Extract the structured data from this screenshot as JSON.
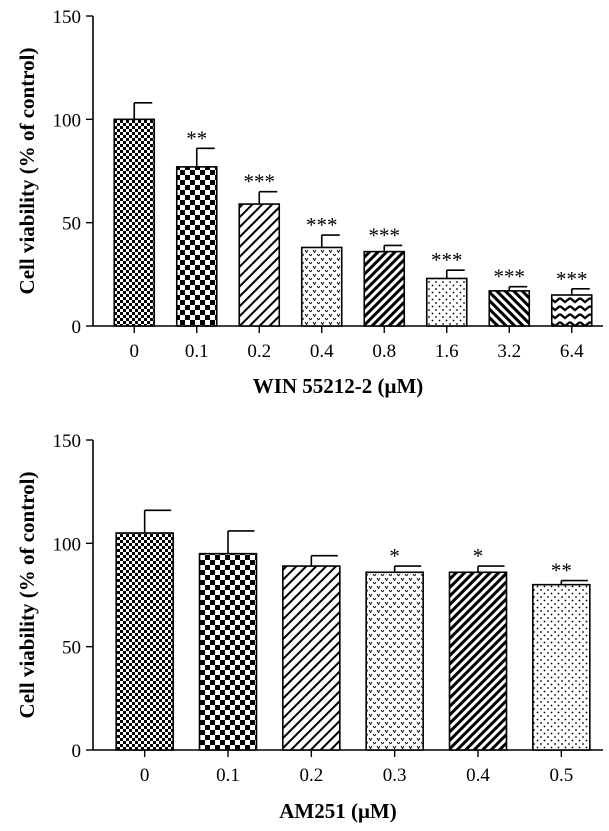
{
  "chart_data": [
    {
      "type": "bar",
      "categories": [
        "0",
        "0.1",
        "0.2",
        "0.4",
        "0.8",
        "1.6",
        "3.2",
        "6.4"
      ],
      "values": [
        100,
        77,
        59,
        38,
        36,
        23,
        17,
        15
      ],
      "errors": [
        8,
        9,
        6,
        6,
        3,
        4,
        2,
        3
      ],
      "significance": [
        "",
        "**",
        "***",
        "***",
        "***",
        "***",
        "***",
        "***"
      ],
      "patterns": [
        "fine-check",
        "checker",
        "diag-right",
        "dots-v",
        "diag-right-dense",
        "dots",
        "diag-left",
        "zigzag"
      ],
      "xlabel": "WIN 55212-2 (μM)",
      "ylabel": "Cell viability (% of control)",
      "ylim": [
        0,
        150
      ],
      "yticks": [
        0,
        50,
        100,
        150
      ]
    },
    {
      "type": "bar",
      "categories": [
        "0",
        "0.1",
        "0.2",
        "0.3",
        "0.4",
        "0.5"
      ],
      "values": [
        105,
        95,
        89,
        86,
        86,
        80
      ],
      "errors": [
        11,
        11,
        5,
        3,
        3,
        2
      ],
      "significance": [
        "",
        "",
        "",
        "*",
        "*",
        "**"
      ],
      "patterns": [
        "fine-check",
        "checker",
        "diag-right",
        "dots-v",
        "diag-right-dense",
        "dots"
      ],
      "xlabel": "AM251 (μM)",
      "ylabel": "Cell viability (% of control)",
      "ylim": [
        0,
        150
      ],
      "yticks": [
        0,
        50,
        100,
        150
      ]
    }
  ]
}
